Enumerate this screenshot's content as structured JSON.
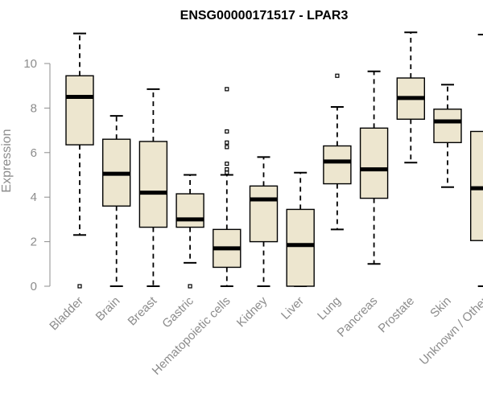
{
  "chart_data": {
    "type": "boxplot",
    "title": "ENSG00000171517 - LPAR3",
    "xlabel": "",
    "ylabel": "Expression",
    "ylim": [
      0,
      11.5
    ],
    "yticks": [
      0,
      2,
      4,
      6,
      8,
      10
    ],
    "categories": [
      "Bladder",
      "Brain",
      "Breast",
      "Gastric",
      "Hematopoietic cells",
      "Kidney",
      "Liver",
      "Lung",
      "Pancreas",
      "Prostate",
      "Skin",
      "Unknown / Other"
    ],
    "box_color": "#ede6cf",
    "series": [
      {
        "name": "Bladder",
        "min": 2.3,
        "q1": 6.35,
        "median": 8.5,
        "q3": 9.45,
        "max": 11.35,
        "outliers": [
          0
        ]
      },
      {
        "name": "Brain",
        "min": 0,
        "q1": 3.6,
        "median": 5.05,
        "q3": 6.6,
        "max": 7.65,
        "outliers": []
      },
      {
        "name": "Breast",
        "min": 0,
        "q1": 2.65,
        "median": 4.2,
        "q3": 6.5,
        "max": 8.85,
        "outliers": []
      },
      {
        "name": "Gastric",
        "min": 1.05,
        "q1": 2.65,
        "median": 3.0,
        "q3": 4.15,
        "max": 5.0,
        "outliers": [
          0
        ]
      },
      {
        "name": "Hematopoietic cells",
        "min": 0,
        "q1": 0.85,
        "median": 1.7,
        "q3": 2.55,
        "max": 5.0,
        "outliers": [
          5.1,
          5.25,
          5.5,
          6.25,
          6.45,
          6.95,
          8.85
        ]
      },
      {
        "name": "Kidney",
        "min": 0,
        "q1": 2.0,
        "median": 3.9,
        "q3": 4.5,
        "max": 5.8,
        "outliers": []
      },
      {
        "name": "Liver",
        "min": 0,
        "q1": 0,
        "median": 1.85,
        "q3": 3.45,
        "max": 5.1,
        "outliers": []
      },
      {
        "name": "Lung",
        "min": 2.55,
        "q1": 4.6,
        "median": 5.6,
        "q3": 6.3,
        "max": 8.05,
        "outliers": [
          9.45
        ]
      },
      {
        "name": "Pancreas",
        "min": 1.0,
        "q1": 3.95,
        "median": 5.25,
        "q3": 7.1,
        "max": 9.65,
        "outliers": []
      },
      {
        "name": "Prostate",
        "min": 5.55,
        "q1": 7.5,
        "median": 8.45,
        "q3": 9.35,
        "max": 11.4,
        "outliers": []
      },
      {
        "name": "Skin",
        "min": 4.45,
        "q1": 6.45,
        "median": 7.4,
        "q3": 7.95,
        "max": 9.05,
        "outliers": []
      },
      {
        "name": "Unknown / Other",
        "min": 0,
        "q1": 2.05,
        "median": 4.4,
        "q3": 6.95,
        "max": 11.3,
        "outliers": []
      }
    ]
  }
}
